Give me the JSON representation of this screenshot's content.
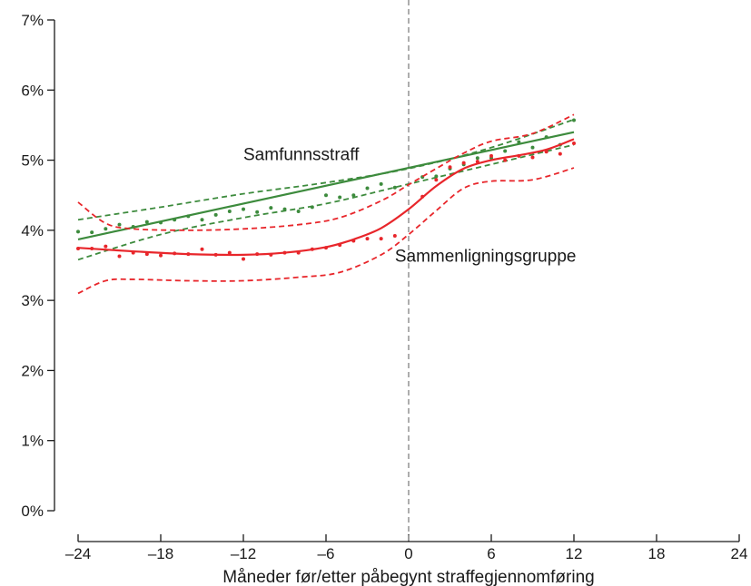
{
  "chart_data": {
    "type": "line",
    "xlabel": "Måneder før/etter påbegynt straffegjennomføring",
    "ylabel": "",
    "xlim": [
      -24,
      24
    ],
    "ylim": [
      0,
      7
    ],
    "x_ticks": [
      -24,
      -18,
      -12,
      -6,
      0,
      6,
      12,
      18,
      24
    ],
    "x_tick_labels": [
      "–24",
      "–18",
      "–12",
      "–6",
      "0",
      "6",
      "12",
      "18",
      "24"
    ],
    "y_ticks": [
      0,
      1,
      2,
      3,
      4,
      5,
      6,
      7
    ],
    "y_tick_labels": [
      "0%",
      "1%",
      "2%",
      "3%",
      "4%",
      "5%",
      "6%",
      "7%"
    ],
    "grid": false,
    "reference_line": {
      "x": 0,
      "style": "dashed",
      "color": "#999999"
    },
    "colors": {
      "green": "#3d8b3d",
      "red": "#e8262b",
      "ref": "#999999",
      "axis": "#1a1a1a"
    },
    "annotations": [
      {
        "text": "Samfunnsstraff",
        "x": -12,
        "y": 5.0
      },
      {
        "text": "Sammenligningsgruppe",
        "x": -1,
        "y": 3.55
      }
    ],
    "series": [
      {
        "role": "fit",
        "color": "#3d8b3d",
        "style": "solid",
        "x": [
          -24,
          12
        ],
        "y": [
          3.87,
          5.4
        ]
      },
      {
        "role": "ci-upper",
        "color": "#3d8b3d",
        "style": "dashed",
        "x": [
          -24,
          -18,
          -12,
          -6,
          0,
          6,
          12
        ],
        "y": [
          4.15,
          4.33,
          4.52,
          4.68,
          4.88,
          5.18,
          5.58
        ]
      },
      {
        "role": "ci-lower",
        "color": "#3d8b3d",
        "style": "dashed",
        "x": [
          -24,
          -18,
          -12,
          -6,
          0,
          6,
          12
        ],
        "y": [
          3.58,
          3.94,
          4.18,
          4.38,
          4.66,
          4.94,
          5.22
        ]
      },
      {
        "role": "points",
        "color": "#3d8b3d",
        "x": [
          -24,
          -23,
          -22,
          -21,
          -20,
          -19,
          -18,
          -17,
          -16,
          -15,
          -14,
          -13,
          -12,
          -11,
          -10,
          -9,
          -8,
          -7,
          -6,
          -5,
          -4,
          -3,
          -2,
          -1,
          1,
          2,
          3,
          4,
          5,
          6,
          7,
          8,
          9,
          10,
          11,
          12
        ],
        "y": [
          3.98,
          3.97,
          4.02,
          4.08,
          4.05,
          4.12,
          4.11,
          4.15,
          4.2,
          4.15,
          4.22,
          4.27,
          4.3,
          4.26,
          4.32,
          4.3,
          4.27,
          4.33,
          4.5,
          4.47,
          4.5,
          4.6,
          4.66,
          4.61,
          4.76,
          4.77,
          4.88,
          4.94,
          5.03,
          5.03,
          5.13,
          5.26,
          5.18,
          5.33,
          5.22,
          5.57
        ]
      },
      {
        "role": "fit",
        "color": "#e8262b",
        "style": "solid",
        "x": [
          -24,
          -20,
          -16,
          -12,
          -9,
          -6,
          -4,
          -2,
          0,
          2,
          4,
          6,
          8,
          10,
          12
        ],
        "y": [
          3.75,
          3.7,
          3.66,
          3.65,
          3.68,
          3.76,
          3.87,
          4.03,
          4.3,
          4.63,
          4.88,
          5.0,
          5.07,
          5.15,
          5.3
        ]
      },
      {
        "role": "ci-upper",
        "color": "#e8262b",
        "style": "dashed",
        "x": [
          -24,
          -22,
          -20,
          -16,
          -12,
          -8,
          -5,
          -2,
          0,
          2,
          4,
          6,
          9,
          12
        ],
        "y": [
          4.4,
          4.1,
          4.02,
          4.0,
          4.02,
          4.08,
          4.18,
          4.42,
          4.65,
          4.88,
          5.1,
          5.27,
          5.38,
          5.65
        ]
      },
      {
        "role": "ci-lower",
        "color": "#e8262b",
        "style": "dashed",
        "x": [
          -24,
          -22,
          -20,
          -16,
          -12,
          -8,
          -5,
          -2,
          0,
          2,
          4,
          6,
          9,
          12
        ],
        "y": [
          3.1,
          3.28,
          3.3,
          3.28,
          3.28,
          3.33,
          3.4,
          3.65,
          3.94,
          4.28,
          4.6,
          4.7,
          4.72,
          4.89
        ]
      },
      {
        "role": "points",
        "color": "#e8262b",
        "x": [
          -24,
          -23,
          -22,
          -21,
          -20,
          -19,
          -18,
          -17,
          -16,
          -15,
          -14,
          -13,
          -12,
          -11,
          -10,
          -9,
          -8,
          -7,
          -6,
          -5,
          -4,
          -3,
          -2,
          -1,
          1,
          2,
          3,
          4,
          5,
          6,
          7,
          8,
          9,
          10,
          11,
          12
        ],
        "y": [
          3.74,
          3.74,
          3.77,
          3.63,
          3.68,
          3.66,
          3.64,
          3.67,
          3.66,
          3.73,
          3.65,
          3.68,
          3.59,
          3.66,
          3.65,
          3.68,
          3.68,
          3.73,
          3.75,
          3.79,
          3.85,
          3.88,
          3.88,
          3.92,
          4.48,
          4.72,
          4.9,
          4.96,
          4.98,
          5.06,
          5.0,
          5.06,
          5.04,
          5.12,
          5.09,
          5.24
        ]
      }
    ]
  }
}
